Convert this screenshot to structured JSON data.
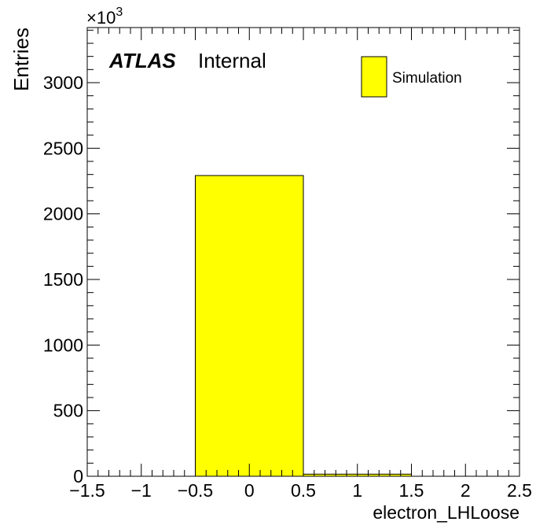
{
  "chart_data": {
    "type": "bar",
    "bin_edges": [
      -0.5,
      0.5,
      1.5
    ],
    "values": [
      2292,
      16
    ],
    "series_name": "Simulation",
    "fill_color": "#ffff00",
    "line_color": "#000000",
    "xlim": [
      -1.5,
      2.5
    ],
    "ylim": [
      0,
      3420
    ],
    "xticks": [
      -1.5,
      -1,
      -0.5,
      0,
      0.5,
      1,
      1.5,
      2,
      2.5
    ],
    "xtick_labels": [
      "−1.5",
      "−1",
      "−0.5",
      "0",
      "0.5",
      "1",
      "1.5",
      "2",
      "2.5"
    ],
    "yticks": [
      0,
      500,
      1000,
      1500,
      2000,
      2500,
      3000
    ],
    "ytick_labels": [
      "0",
      "500",
      "1000",
      "1500",
      "2000",
      "2500",
      "3000"
    ],
    "xlabel": "electron_LHLoose",
    "ylabel": "Entries",
    "y_multiplier": "×10",
    "y_multiplier_exp": "3",
    "atlas_label": "ATLAS",
    "atlas_sublabel": "Internal",
    "legend": {
      "placement": "top-right",
      "entries": [
        "Simulation"
      ]
    },
    "grid": false
  }
}
